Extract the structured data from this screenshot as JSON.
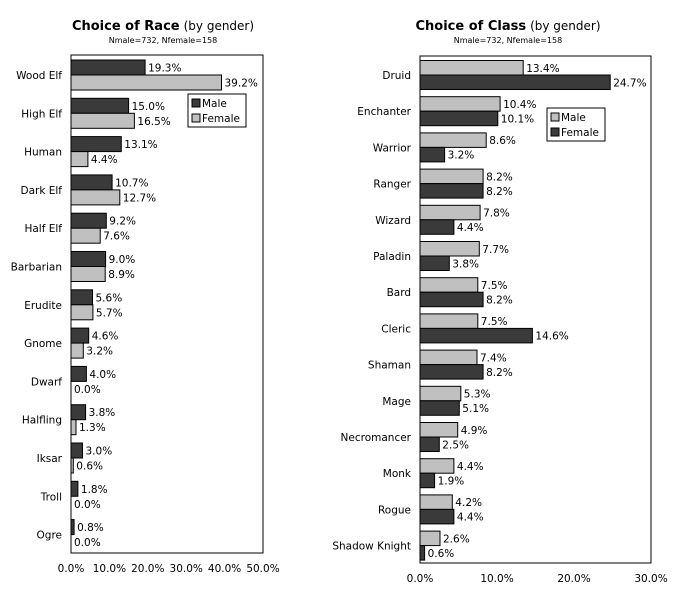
{
  "colors": {
    "male": "#3a3a3a",
    "female": "#c0c0c0",
    "frame": "#000000"
  },
  "chart_data": [
    {
      "type": "bar",
      "orientation": "horizontal",
      "title": "Choice of Race",
      "subtitle": "(by gender)",
      "note": "Nmale=732, Nfemale=158",
      "categories": [
        "Wood Elf",
        "High Elf",
        "Human",
        "Dark Elf",
        "Half Elf",
        "Barbarian",
        "Erudite",
        "Gnome",
        "Dwarf",
        "Halfling",
        "Iksar",
        "Troll",
        "Ogre"
      ],
      "series": [
        {
          "name": "Male",
          "values": [
            19.3,
            15.0,
            13.1,
            10.7,
            9.2,
            9.0,
            5.6,
            4.6,
            4.0,
            3.8,
            3.0,
            1.8,
            0.8
          ]
        },
        {
          "name": "Female",
          "values": [
            39.2,
            16.5,
            4.4,
            12.7,
            7.6,
            8.9,
            5.7,
            3.2,
            0.0,
            1.3,
            0.6,
            0.0,
            0.0
          ]
        }
      ],
      "series_order": [
        "Male",
        "Female"
      ],
      "xlim": [
        0,
        50
      ],
      "ticks": [
        "0.0%",
        "10.0%",
        "20.0%",
        "30.0%",
        "40.0%",
        "50.0%"
      ],
      "legend": "top-right",
      "grid": false
    },
    {
      "type": "bar",
      "orientation": "horizontal",
      "title": "Choice of Class",
      "subtitle": "(by gender)",
      "note": "Nmale=732, Nfemale=158",
      "categories": [
        "Druid",
        "Enchanter",
        "Warrior",
        "Ranger",
        "Wizard",
        "Paladin",
        "Bard",
        "Cleric",
        "Shaman",
        "Mage",
        "Necromancer",
        "Monk",
        "Rogue",
        "Shadow Knight"
      ],
      "series": [
        {
          "name": "Male",
          "values": [
            13.4,
            10.4,
            8.6,
            8.2,
            7.8,
            7.7,
            7.5,
            7.5,
            7.4,
            5.3,
            4.9,
            4.4,
            4.2,
            2.6
          ]
        },
        {
          "name": "Female",
          "values": [
            24.7,
            10.1,
            3.2,
            8.2,
            4.4,
            3.8,
            8.2,
            14.6,
            8.2,
            5.1,
            2.5,
            1.9,
            4.4,
            0.6
          ]
        }
      ],
      "series_order": [
        "Male",
        "Female"
      ],
      "xlim": [
        0,
        30
      ],
      "ticks": [
        "0.0%",
        "10.0%",
        "20.0%",
        "30.0%"
      ],
      "legend": "top-right",
      "grid": false
    }
  ]
}
